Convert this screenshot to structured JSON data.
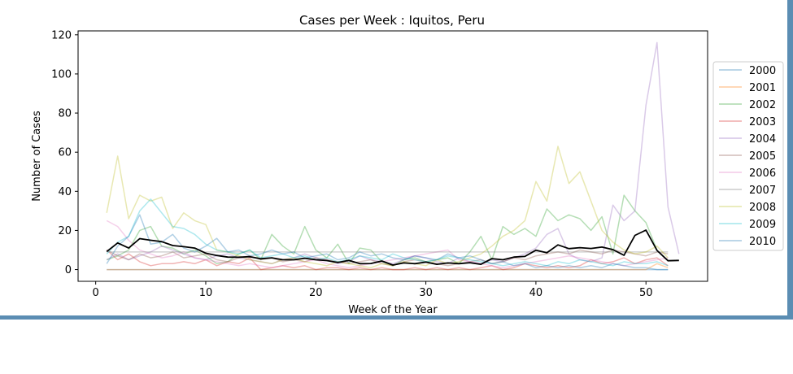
{
  "chart_data": {
    "type": "line",
    "title": "Cases per Week : Iquitos, Peru",
    "xlabel": "Week of the Year",
    "ylabel": "Number of Cases",
    "xlim": [
      -1.6,
      55.6
    ],
    "ylim": [
      -6,
      122
    ],
    "xticks": [
      "0",
      "10",
      "20",
      "30",
      "40",
      "50"
    ],
    "yticks": [
      "0",
      "20",
      "40",
      "60",
      "80",
      "100",
      "120"
    ],
    "legend_position": "right",
    "series": [
      {
        "name": "2000",
        "color": "#1f77b4",
        "values": [
          0,
          0,
          0,
          0,
          0,
          0,
          0,
          0,
          0,
          0,
          0,
          0,
          0,
          0,
          0,
          0,
          0,
          0,
          0,
          0,
          0,
          0,
          0,
          0,
          0,
          0,
          0,
          0,
          0,
          0,
          0,
          0,
          0,
          0,
          0,
          0,
          0,
          0,
          0,
          0,
          0,
          0,
          0,
          0,
          0,
          0,
          0,
          0,
          0,
          0,
          0,
          0
        ]
      },
      {
        "name": "2001",
        "color": "#ff7f0e",
        "values": [
          0,
          0,
          0,
          0,
          0,
          0,
          0,
          0,
          0,
          0,
          0,
          0,
          0,
          0,
          0,
          0,
          0,
          0,
          0,
          0,
          0,
          0,
          0,
          0,
          0,
          0,
          0,
          0,
          0,
          0,
          0,
          0,
          0,
          0,
          0,
          0,
          0,
          0,
          0,
          0,
          0,
          0,
          0,
          0,
          0,
          0,
          0,
          0,
          0,
          0,
          3,
          1
        ]
      },
      {
        "name": "2002",
        "color": "#2ca02c",
        "values": [
          5,
          7,
          10,
          20,
          22,
          12,
          11,
          8,
          10,
          7,
          3,
          4,
          8,
          10,
          5,
          18,
          12,
          8,
          22,
          10,
          6,
          13,
          3,
          11,
          10,
          4,
          2,
          5,
          6,
          4,
          5,
          6,
          3,
          9,
          17,
          5,
          22,
          18,
          21,
          17,
          31,
          25,
          28,
          26,
          20,
          27,
          8,
          38,
          30,
          24,
          10
        ]
      },
      {
        "name": "2003",
        "color": "#d62728",
        "values": [
          10,
          5,
          8,
          4,
          2,
          3,
          3,
          4,
          3,
          5,
          2,
          4,
          3,
          6,
          0,
          1,
          2,
          1,
          2,
          0,
          1,
          1,
          0,
          1,
          0,
          1,
          0,
          0,
          1,
          0,
          1,
          0,
          1,
          0,
          1,
          2,
          0,
          1,
          3,
          2,
          1,
          2,
          1,
          2,
          5,
          3,
          4,
          6,
          3,
          5,
          6,
          2
        ]
      },
      {
        "name": "2004",
        "color": "#9467bd",
        "values": [
          5,
          8,
          5,
          7,
          9,
          12,
          10,
          8,
          6,
          5,
          7,
          8,
          6,
          5,
          4,
          3,
          5,
          6,
          8,
          6,
          5,
          3,
          4,
          7,
          5,
          4,
          3,
          5,
          7,
          6,
          4,
          3,
          6,
          4,
          3,
          5,
          4,
          6,
          8,
          11,
          18,
          21,
          8,
          5,
          4,
          6,
          33,
          25,
          30,
          84,
          116,
          32,
          8
        ]
      },
      {
        "name": "2005",
        "color": "#8c564b",
        "values": [
          10,
          7,
          5,
          8,
          6,
          7,
          9,
          6,
          7,
          8,
          5,
          4,
          6,
          7,
          5,
          6,
          4,
          5,
          4,
          6,
          5,
          4,
          3,
          4,
          5,
          3,
          2,
          4,
          5,
          4,
          3,
          2,
          3,
          4,
          5,
          3,
          4,
          6,
          5,
          7,
          8,
          9,
          8,
          10,
          9,
          8,
          10,
          9,
          8,
          7,
          9,
          8
        ]
      },
      {
        "name": "2006",
        "color": "#e377c2",
        "values": [
          25,
          22,
          15,
          10,
          8,
          6,
          7,
          9,
          6,
          5,
          4,
          3,
          2,
          3,
          2,
          1,
          2,
          3,
          4,
          5,
          3,
          2,
          1,
          2,
          3,
          4,
          5,
          6,
          7,
          8,
          9,
          10,
          5,
          4,
          3,
          2,
          1,
          2,
          3,
          4,
          5,
          6,
          7,
          6,
          5,
          4,
          3,
          2,
          3,
          4,
          5,
          6
        ]
      },
      {
        "name": "2007",
        "color": "#7f7f7f",
        "values": [
          9,
          9,
          9,
          9,
          9,
          9,
          9,
          9,
          9,
          9,
          9,
          9,
          9,
          9,
          9,
          9,
          9,
          9,
          9,
          9,
          9,
          9,
          9,
          9,
          9,
          9,
          9,
          9,
          9,
          9,
          9,
          9,
          9,
          9,
          9,
          9,
          9,
          9,
          9,
          9,
          9,
          9,
          9,
          9,
          9,
          9,
          9,
          9,
          9,
          9,
          9,
          9
        ]
      },
      {
        "name": "2008",
        "color": "#bcbd22",
        "values": [
          29,
          58,
          26,
          38,
          35,
          37,
          21,
          29,
          25,
          23,
          10,
          9,
          7,
          5,
          4,
          3,
          5,
          6,
          4,
          3,
          2,
          4,
          3,
          2,
          1,
          3,
          2,
          4,
          3,
          2,
          5,
          3,
          4,
          6,
          8,
          12,
          17,
          20,
          25,
          45,
          35,
          63,
          44,
          50,
          35,
          20,
          14,
          10,
          8,
          9,
          12,
          6
        ]
      },
      {
        "name": "2009",
        "color": "#17becf",
        "values": [
          8,
          14,
          17,
          30,
          36,
          29,
          22,
          21,
          18,
          13,
          10,
          9,
          8,
          10,
          6,
          7,
          8,
          6,
          7,
          5,
          6,
          4,
          5,
          7,
          6,
          5,
          8,
          6,
          5,
          4,
          5,
          7,
          6,
          5,
          4,
          3,
          2,
          3,
          4,
          3,
          2,
          4,
          3,
          5,
          4,
          3,
          2,
          4,
          3,
          3,
          4,
          2
        ]
      },
      {
        "name": "2010",
        "color": "#1f77b4",
        "values": [
          3,
          12,
          17,
          28,
          13,
          14,
          18,
          11,
          9,
          12,
          16,
          9,
          10,
          7,
          8,
          10,
          8,
          9,
          6,
          7,
          8,
          5,
          6,
          9,
          7,
          8,
          6,
          5,
          7,
          6,
          5,
          8,
          6,
          7,
          5,
          3,
          4,
          2,
          3,
          1,
          2,
          1,
          2,
          1,
          2,
          1,
          3,
          2,
          1,
          1,
          0,
          0
        ]
      },
      {
        "name": "",
        "color": "#000000",
        "mean": true,
        "values": [
          9.2,
          13.6,
          11,
          15.8,
          15,
          14.3,
          12.3,
          11.7,
          11,
          8.4,
          7.2,
          6.4,
          6.3,
          6.6,
          5.5,
          6,
          5,
          5,
          5.8,
          5,
          4.6,
          3.6,
          4.7,
          3,
          3.1,
          4.4,
          2.3,
          3.4,
          3,
          3.8,
          2.7,
          3.4,
          3,
          3.5,
          2.7,
          5.6,
          5,
          6.4,
          6.7,
          9.9,
          8.6,
          12.6,
          10.7,
          11.2,
          10.8,
          11.5,
          10.2,
          7.3,
          17.5,
          20.2,
          9.8,
          4.5,
          4.7
        ]
      }
    ]
  }
}
